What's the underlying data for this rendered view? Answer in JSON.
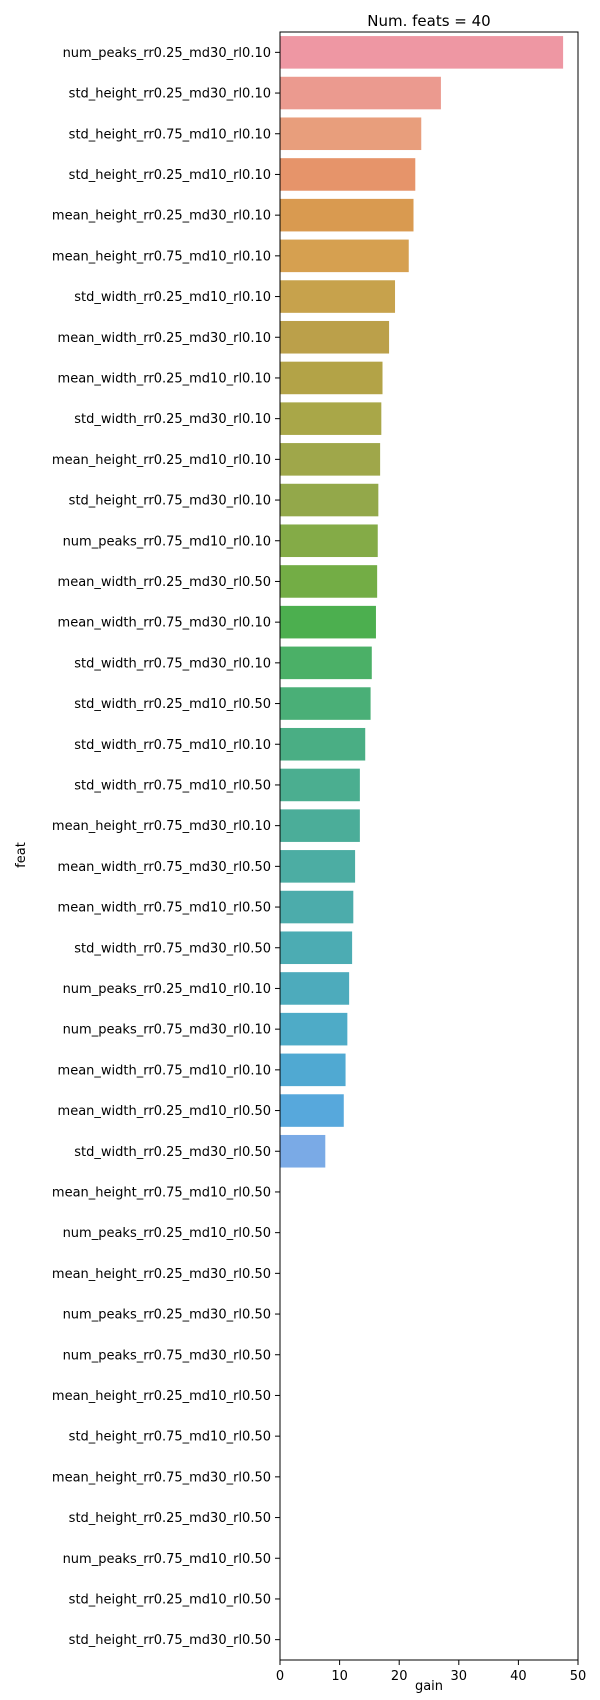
{
  "chart_data": {
    "type": "bar",
    "orientation": "horizontal",
    "title": "Num. feats = 40",
    "xlabel": "gain",
    "ylabel": "feat",
    "xlim": [
      0,
      50
    ],
    "xticks": [
      0,
      10,
      20,
      30,
      40,
      50
    ],
    "grid": false,
    "categories": [
      "num_peaks_rr0.25_md30_rl0.10",
      "std_height_rr0.25_md30_rl0.10",
      "std_height_rr0.75_md10_rl0.10",
      "std_height_rr0.25_md10_rl0.10",
      "mean_height_rr0.25_md30_rl0.10",
      "mean_height_rr0.75_md10_rl0.10",
      "std_width_rr0.25_md10_rl0.10",
      "mean_width_rr0.25_md30_rl0.10",
      "mean_width_rr0.25_md10_rl0.10",
      "std_width_rr0.25_md30_rl0.10",
      "mean_height_rr0.25_md10_rl0.10",
      "std_height_rr0.75_md30_rl0.10",
      "num_peaks_rr0.75_md10_rl0.10",
      "mean_width_rr0.25_md30_rl0.50",
      "mean_width_rr0.75_md30_rl0.10",
      "std_width_rr0.75_md30_rl0.10",
      "std_width_rr0.25_md10_rl0.50",
      "std_width_rr0.75_md10_rl0.10",
      "std_width_rr0.75_md10_rl0.50",
      "mean_height_rr0.75_md30_rl0.10",
      "mean_width_rr0.75_md30_rl0.50",
      "mean_width_rr0.75_md10_rl0.50",
      "std_width_rr0.75_md30_rl0.50",
      "num_peaks_rr0.25_md10_rl0.10",
      "num_peaks_rr0.75_md30_rl0.10",
      "mean_width_rr0.75_md10_rl0.10",
      "mean_width_rr0.25_md10_rl0.50",
      "std_width_rr0.25_md30_rl0.50",
      "mean_height_rr0.75_md10_rl0.50",
      "num_peaks_rr0.25_md10_rl0.50",
      "mean_height_rr0.25_md30_rl0.50",
      "num_peaks_rr0.25_md30_rl0.50",
      "num_peaks_rr0.75_md30_rl0.50",
      "mean_height_rr0.25_md10_rl0.50",
      "std_height_rr0.75_md10_rl0.50",
      "mean_height_rr0.75_md30_rl0.50",
      "std_height_rr0.25_md30_rl0.50",
      "num_peaks_rr0.75_md10_rl0.50",
      "std_height_rr0.25_md10_rl0.50",
      "std_height_rr0.75_md30_rl0.50"
    ],
    "values": [
      47.5,
      27.0,
      23.7,
      22.7,
      22.4,
      21.6,
      19.3,
      18.3,
      17.2,
      17.0,
      16.8,
      16.5,
      16.4,
      16.3,
      16.1,
      15.4,
      15.2,
      14.3,
      13.4,
      13.4,
      12.6,
      12.3,
      12.1,
      11.6,
      11.3,
      11.0,
      10.7,
      7.6,
      0,
      0,
      0,
      0,
      0,
      0,
      0,
      0,
      0,
      0,
      0,
      0
    ],
    "colors": [
      "#ee97a3",
      "#eb9a8f",
      "#e89e7c",
      "#e6946a",
      "#d99a50",
      "#d6a050",
      "#c7a24c",
      "#bba04a",
      "#b3a347",
      "#a9a748",
      "#9fa74a",
      "#93a84a",
      "#84ab47",
      "#73ad45",
      "#4caf4f",
      "#4bb067",
      "#4aaf77",
      "#4aae84",
      "#4bae90",
      "#4bad99",
      "#4cada3",
      "#4cacab",
      "#4cacb3",
      "#4dabbc",
      "#4eabc7",
      "#50a9d2",
      "#57a8dc",
      "#7aaae6",
      "#a59fe9",
      "#c490e5",
      "#d77fe0",
      "#e675d4",
      "#ec6fbf",
      "#f06fab",
      "#f2729a",
      "#f3778b",
      "#f47c7f",
      "#f48275",
      "#f3886c",
      "#f28e64"
    ]
  }
}
